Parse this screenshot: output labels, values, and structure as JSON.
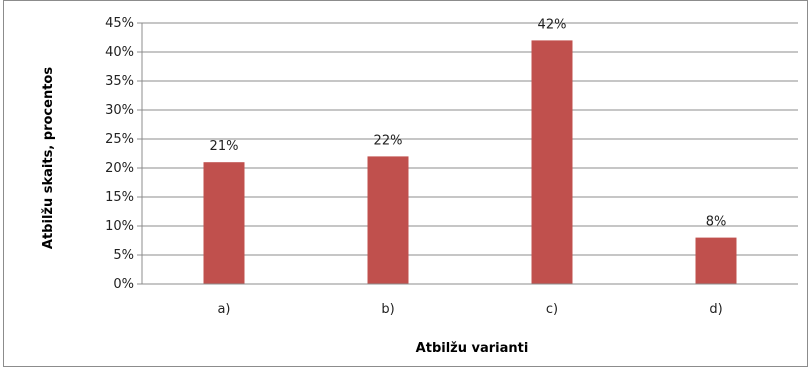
{
  "chart_data": {
    "type": "bar",
    "categories": [
      "a)",
      "b)",
      "c)",
      "d)"
    ],
    "values": [
      21,
      22,
      42,
      8
    ],
    "data_labels": [
      "21%",
      "22%",
      "42%",
      "8%"
    ],
    "ylim": [
      0,
      45
    ],
    "y_ticks": [
      "0%",
      "5%",
      "10%",
      "15%",
      "20%",
      "25%",
      "30%",
      "35%",
      "40%",
      "45%"
    ],
    "xlabel": "Atbilžu varianti",
    "ylabel": "Atbilžu skaits, procentos",
    "bar_color": "#c0504d",
    "grid": true,
    "legend": "none"
  }
}
